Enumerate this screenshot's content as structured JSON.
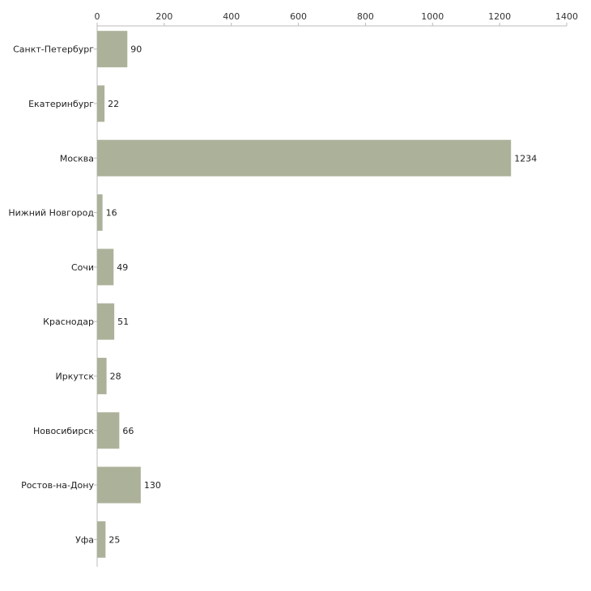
{
  "chart_data": {
    "type": "bar",
    "orientation": "horizontal",
    "title": "",
    "xlabel": "",
    "ylabel": "",
    "xlim": [
      0,
      1400
    ],
    "x_ticks": [
      0,
      200,
      400,
      600,
      800,
      1000,
      1200,
      1400
    ],
    "x_axis_position": "top",
    "grid": false,
    "bar_color": "#acb29a",
    "categories": [
      "Санкт-Петербург",
      "Екатеринбург",
      "Москва",
      "Нижний Новгород",
      "Сочи",
      "Краснодар",
      "Иркутск",
      "Новосибирск",
      "Ростов-на-Дону",
      "Уфа"
    ],
    "values": [
      90,
      22,
      1234,
      16,
      49,
      51,
      28,
      66,
      130,
      25
    ]
  }
}
